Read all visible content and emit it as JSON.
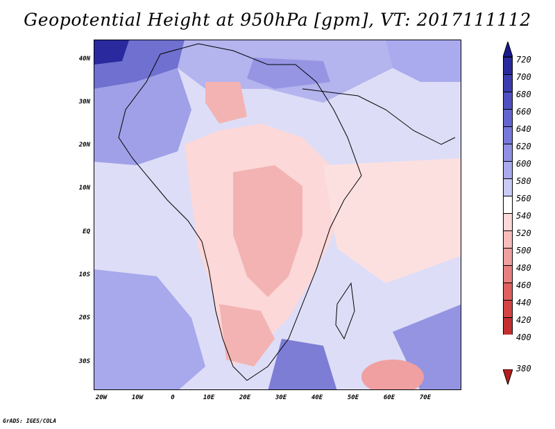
{
  "title": "Geopotential Height at 950hPa [gpm], VT: 2017111112",
  "footer": "GrADS: IGES/COLA",
  "map": {
    "lon_ticks": [
      "20W",
      "10W",
      "0",
      "10E",
      "20E",
      "30E",
      "40E",
      "50E",
      "60E",
      "70E"
    ],
    "lat_ticks": [
      "40N",
      "30N",
      "20N",
      "10N",
      "EQ",
      "10S",
      "20S",
      "30S"
    ]
  },
  "colorbar": {
    "levels": [
      "720",
      "700",
      "680",
      "660",
      "640",
      "620",
      "600",
      "580",
      "560",
      "540",
      "520",
      "500",
      "480",
      "460",
      "440",
      "420",
      "400",
      "380"
    ],
    "colors": [
      "#1a1a8c",
      "#2a2a9e",
      "#3c3cb0",
      "#5050c0",
      "#6464d0",
      "#7878dc",
      "#9090e4",
      "#aaaaee",
      "#cacaf6",
      "#ffffff",
      "#fcd8d8",
      "#f8bcbc",
      "#f0a0a0",
      "#e88080",
      "#e06060",
      "#d44444",
      "#c43030",
      "#b41e1e"
    ]
  }
}
